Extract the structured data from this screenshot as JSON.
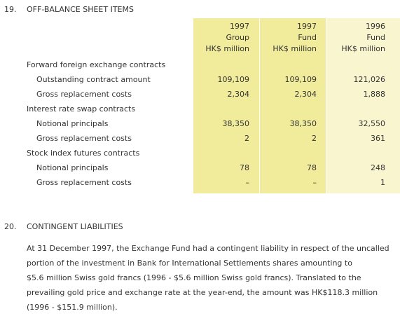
{
  "sections": [
    {
      "number": "19.",
      "title": "OFF-BALANCE SHEET ITEMS",
      "table": {
        "columns": [
          [
            "1997",
            "Group",
            "HK$ million"
          ],
          [
            "1997",
            "Fund",
            "HK$ million"
          ],
          [
            "1996",
            "Fund",
            "HK$ million"
          ]
        ],
        "groups": [
          {
            "label": "Forward foreign exchange contracts",
            "items": [
              {
                "label": "Outstanding contract amount",
                "values": [
                  "109,109",
                  "109,109",
                  "121,026"
                ]
              },
              {
                "label": "Gross replacement costs",
                "values": [
                  "2,304",
                  "2,304",
                  "1,888"
                ]
              }
            ]
          },
          {
            "label": "Interest rate swap contracts",
            "items": [
              {
                "label": "Notional principals",
                "values": [
                  "38,350",
                  "38,350",
                  "32,550"
                ]
              },
              {
                "label": "Gross replacement costs",
                "values": [
                  "2",
                  "2",
                  "361"
                ]
              }
            ]
          },
          {
            "label": "Stock index futures contracts",
            "items": [
              {
                "label": "Notional principals",
                "values": [
                  "78",
                  "78",
                  "248"
                ]
              },
              {
                "label": "Gross replacement costs",
                "values": [
                  "–",
                  "–",
                  "1"
                ]
              }
            ]
          }
        ]
      }
    },
    {
      "number": "20.",
      "title": "CONTINGENT LIABILITIES",
      "paragraph": [
        "At 31 December 1997, the Exchange Fund had a contingent liability in respect of the uncalled",
        "portion of the investment in Bank for International Settlements shares amounting to",
        "$5.6 million Swiss gold francs (1996 - $5.6 million Swiss gold francs). Translated to the",
        "prevailing gold price and exchange rate at the year-end, the amount was HK$118.3 million",
        "(1996 - $151.9 million)."
      ]
    }
  ]
}
